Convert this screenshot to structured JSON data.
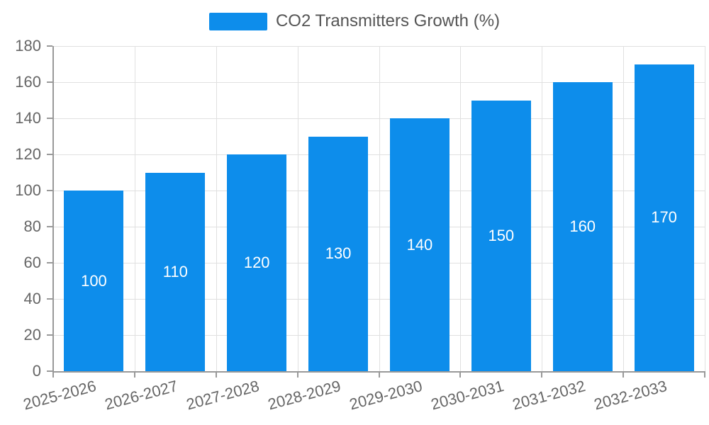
{
  "legend": {
    "label": "CO2 Transmitters Growth (%)"
  },
  "colors": {
    "bar": "#0d8deb",
    "bar_label": "#ffffff",
    "grid": "#e0e0e0",
    "axis": "#999999",
    "axis_text": "#666666",
    "legend_text": "#555555",
    "background": "#ffffff"
  },
  "chart_data": {
    "type": "bar",
    "title": "CO2 Transmitters Growth (%)",
    "categories": [
      "2025-2026",
      "2026-2027",
      "2027-2028",
      "2028-2029",
      "2029-2030",
      "2030-2031",
      "2031-2032",
      "2032-2033"
    ],
    "values": [
      100,
      110,
      120,
      130,
      140,
      150,
      160,
      170
    ],
    "series_name": "CO2 Transmitters Growth (%)",
    "xlabel": "",
    "ylabel": "",
    "ylim": [
      0,
      180
    ],
    "yticks": [
      0,
      20,
      40,
      60,
      80,
      100,
      120,
      140,
      160,
      180
    ],
    "grid": true,
    "legend_position": "top",
    "bar_labels_inside": true,
    "x_label_rotation_deg": -15
  }
}
